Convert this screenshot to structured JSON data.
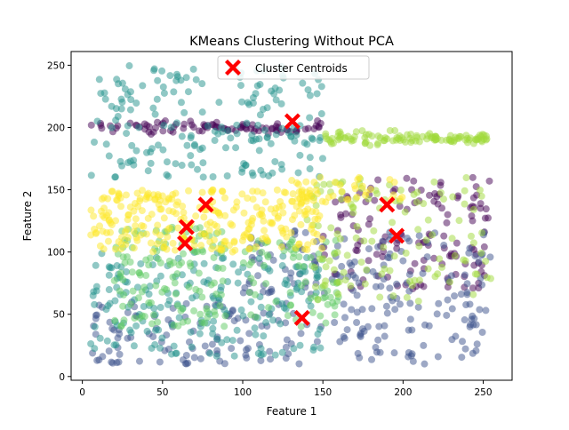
{
  "chart_data": {
    "type": "scatter",
    "title": "KMeans Clustering Without PCA",
    "xlabel": "Feature 1",
    "ylabel": "Feature 2",
    "xlim": [
      -7,
      268
    ],
    "ylim": [
      -3,
      261
    ],
    "xticks": [
      0,
      50,
      100,
      150,
      200,
      250
    ],
    "yticks": [
      0,
      50,
      100,
      150,
      200,
      250
    ],
    "grid": false,
    "legend_position": "top-center",
    "legend": [
      {
        "label": "Cluster Centroids",
        "marker": "X",
        "color": "#ff0000"
      }
    ],
    "point_colormap": "viridis",
    "point_alpha": 0.5,
    "clusters": [
      {
        "color": "#440154",
        "approx_points": 220,
        "region": "band near y≈200 for x 5–150; dense area x 150–255, y 70–160"
      },
      {
        "color": "#3b528b",
        "approx_points": 300,
        "region": "scattered everywhere, mostly x 100–255, y 10–120"
      },
      {
        "color": "#21918c",
        "approx_points": 380,
        "region": "scattered broadly, top-left and bottom-left areas"
      },
      {
        "color": "#5ec962",
        "approx_points": 200,
        "region": "x 20–90, y 40–120; lower-middle area"
      },
      {
        "color": "#9fda3a",
        "approx_points": 230,
        "region": "band near y≈190 for x 150–255; x 140–255, y 60–160"
      },
      {
        "color": "#fde725",
        "approx_points": 320,
        "region": "x 5–150, y 80–160"
      }
    ],
    "centroids": [
      {
        "x": 131,
        "y": 205
      },
      {
        "x": 190,
        "y": 138
      },
      {
        "x": 196,
        "y": 113
      },
      {
        "x": 77,
        "y": 138
      },
      {
        "x": 65,
        "y": 120
      },
      {
        "x": 64,
        "y": 107
      },
      {
        "x": 137,
        "y": 47
      }
    ]
  }
}
